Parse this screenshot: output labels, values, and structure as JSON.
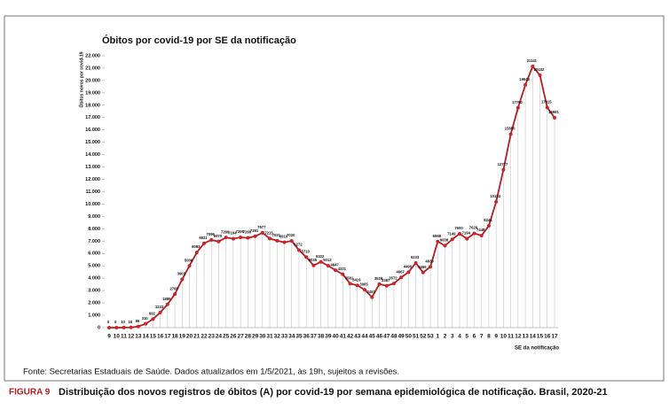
{
  "chart_data": {
    "type": "line",
    "title": "Óbitos por covid-19 por SE da notificação",
    "y_label": "Óbitos novos por covid-19",
    "x_label": "SE da notificação",
    "source": "Fonte: Secretarias Estaduais de Saúde. Dados atualizados em 1/5/2021, às 19h, sujeitos a revisões.",
    "figure_number": "FIGURA 9",
    "caption": "Distribuição dos novos registros de óbitos (A) por covid-19 por semana epidemiológica de notificação. Brasil, 2020-21",
    "categories": [
      "9",
      "10",
      "11",
      "12",
      "13",
      "14",
      "15",
      "16",
      "17",
      "18",
      "19",
      "20",
      "21",
      "22",
      "23",
      "24",
      "25",
      "26",
      "27",
      "28",
      "29",
      "30",
      "31",
      "32",
      "33",
      "34",
      "35",
      "36",
      "37",
      "38",
      "39",
      "40",
      "41",
      "42",
      "43",
      "44",
      "45",
      "46",
      "47",
      "48",
      "49",
      "50",
      "51",
      "52",
      "53",
      "1",
      "2",
      "3",
      "4",
      "5",
      "6",
      "7",
      "8",
      "9",
      "10",
      "11",
      "12",
      "13",
      "14",
      "15",
      "16",
      "17"
    ],
    "series": [
      {
        "name": "Óbitos novos",
        "color": "#b01e23",
        "values": [
          0,
          0,
          10,
          18,
          96,
          310,
          692,
          1223,
          1885,
          2708,
          3903,
          5006,
          6083,
          6821,
          7096,
          6970,
          7299,
          7194,
          7306,
          7266,
          7391,
          7677,
          7215,
          7031,
          6910,
          7020,
          6272,
          5710,
          5035,
          5322,
          5012,
          4647,
          4321,
          3561,
          3419,
          3065,
          2461,
          3529,
          3387,
          3572,
          4067,
          4490,
          5233,
          4466,
          4930,
          6968,
          6638,
          7149,
          7600,
          7194,
          7628,
          7448,
          8244,
          10184,
          12777,
          15650,
          17790,
          19643,
          21141,
          20432,
          17815,
          16991
        ]
      }
    ],
    "ylim": [
      0,
      22000
    ],
    "yticks": [
      0,
      {
        "value": 1000,
        "label": "1.000"
      },
      {
        "value": 2000,
        "label": "2.000"
      },
      {
        "value": 3000,
        "label": "3.000"
      },
      {
        "value": 4000,
        "label": "4.000"
      },
      {
        "value": 5000,
        "label": "5.000"
      },
      {
        "value": 6000,
        "label": "6.000"
      },
      {
        "value": 7000,
        "label": "7.000"
      },
      {
        "value": 8000,
        "label": "8.000"
      },
      {
        "value": 9000,
        "label": "9.000"
      },
      {
        "value": 10000,
        "label": "10.000"
      },
      {
        "value": 11000,
        "label": "11.000"
      },
      {
        "value": 12000,
        "label": "12.000"
      },
      {
        "value": 13000,
        "label": "13.000"
      },
      {
        "value": 14000,
        "label": "14.000"
      },
      {
        "value": 15000,
        "label": "15.000"
      },
      {
        "value": 16000,
        "label": "16.000"
      },
      {
        "value": 17000,
        "label": "17.000"
      },
      {
        "value": 18000,
        "label": "18.000"
      },
      {
        "value": 19000,
        "label": "19.000"
      },
      {
        "value": 20000,
        "label": "20.000"
      },
      {
        "value": 21000,
        "label": "21.000"
      },
      {
        "value": 22000,
        "label": "22.000"
      }
    ]
  }
}
